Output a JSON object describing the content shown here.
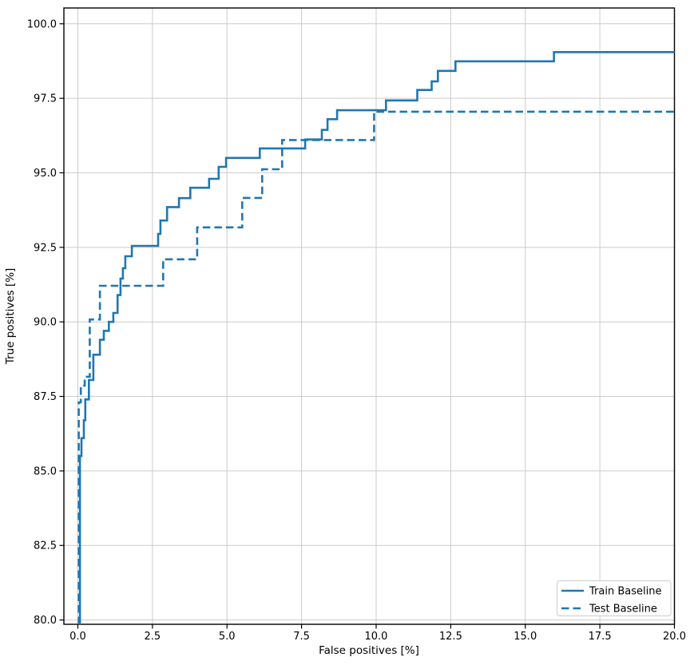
{
  "chart_data": {
    "type": "line",
    "subtype": "step-post-roc",
    "title": "",
    "xlabel": "False positives [%]",
    "ylabel": "True positives [%]",
    "grid": true,
    "background_color": "#ffffff",
    "grid_color": "#cccccc",
    "line_color": "#1f77b4",
    "xlim": [
      -0.468,
      20.0
    ],
    "ylim": [
      79.855,
      100.53
    ],
    "x_ticks": [
      0.0,
      2.5,
      5.0,
      7.5,
      10.0,
      12.5,
      15.0,
      17.5,
      20.0
    ],
    "x_tick_labels": [
      "0.0",
      "2.5",
      "5.0",
      "7.5",
      "10.0",
      "12.5",
      "15.0",
      "17.5",
      "20.0"
    ],
    "y_ticks": [
      80.0,
      82.5,
      85.0,
      87.5,
      90.0,
      92.5,
      95.0,
      97.5,
      100.0
    ],
    "y_tick_labels": [
      "80.0",
      "82.5",
      "85.0",
      "87.5",
      "90.0",
      "92.5",
      "95.0",
      "97.5",
      "100.0"
    ],
    "legend": {
      "position": "lower right",
      "items": [
        "Train Baseline",
        "Test Baseline"
      ]
    },
    "series": [
      {
        "name": "Train Baseline",
        "style": "solid",
        "start_x": 0.07,
        "end_x": 20.0,
        "steps": [
          [
            0.07,
            85.5
          ],
          [
            0.12,
            86.1
          ],
          [
            0.2,
            86.7
          ],
          [
            0.25,
            87.4
          ],
          [
            0.37,
            88.05
          ],
          [
            0.52,
            88.9
          ],
          [
            0.74,
            89.4
          ],
          [
            0.87,
            89.7
          ],
          [
            1.04,
            90.0
          ],
          [
            1.19,
            90.3
          ],
          [
            1.33,
            90.9
          ],
          [
            1.43,
            91.45
          ],
          [
            1.51,
            91.8
          ],
          [
            1.59,
            92.2
          ],
          [
            1.81,
            92.55
          ],
          [
            2.69,
            92.95
          ],
          [
            2.77,
            93.4
          ],
          [
            2.99,
            93.85
          ],
          [
            3.39,
            94.15
          ],
          [
            3.77,
            94.5
          ],
          [
            4.4,
            94.8
          ],
          [
            4.72,
            95.2
          ],
          [
            4.97,
            95.5
          ],
          [
            6.1,
            95.82
          ],
          [
            7.62,
            96.12
          ],
          [
            8.18,
            96.44
          ],
          [
            8.37,
            96.8
          ],
          [
            8.69,
            97.1
          ],
          [
            10.33,
            97.43
          ],
          [
            11.38,
            97.78
          ],
          [
            11.86,
            98.07
          ],
          [
            12.07,
            98.42
          ],
          [
            12.66,
            98.74
          ],
          [
            15.96,
            99.05
          ]
        ]
      },
      {
        "name": "Test Baseline",
        "style": "dashed",
        "start_x": 0.03,
        "end_x": 20.0,
        "steps": [
          [
            0.03,
            87.3
          ],
          [
            0.1,
            87.86
          ],
          [
            0.23,
            88.16
          ],
          [
            0.4,
            90.08
          ],
          [
            0.74,
            91.21
          ],
          [
            2.86,
            92.1
          ],
          [
            4.0,
            93.17
          ],
          [
            5.51,
            94.16
          ],
          [
            6.18,
            95.12
          ],
          [
            6.85,
            96.1
          ],
          [
            9.93,
            97.05
          ]
        ]
      }
    ]
  }
}
